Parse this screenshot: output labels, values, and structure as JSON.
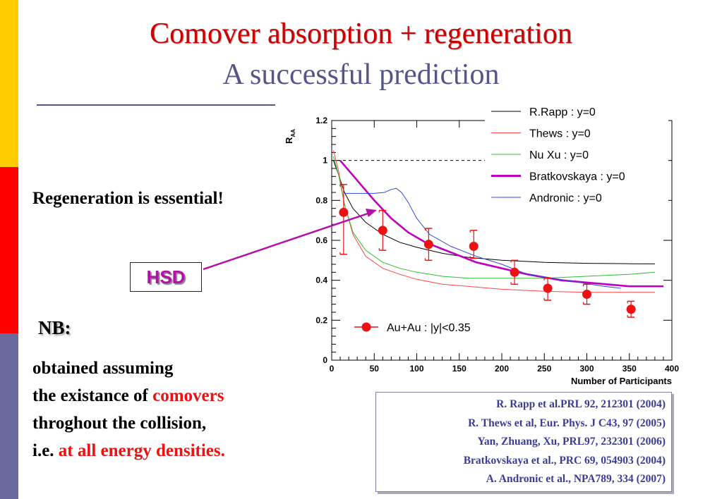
{
  "slide": {
    "title": "Comover absorption + regeneration",
    "subtitle": "A successful prediction",
    "regen_note": "Regeneration is essential!",
    "hsd_label": "HSD",
    "nb_label": "NB:",
    "nb_lines": {
      "l1": "obtained assuming",
      "l2a": "the existance of ",
      "l2b": "comovers",
      "l3": "throghout the collision,",
      "l4a": "i.e. ",
      "l4b": "at all energy densities."
    },
    "references": [
      "R. Rapp et al.PRL 92, 212301 (2004)",
      "R. Thews et al, Eur. Phys. J C43, 97 (2005)",
      "Yan, Zhuang, Xu, PRL97, 232301 (2006)",
      "Bratkovskaya et al., PRC 69, 054903 (2004)",
      "A. Andronic et al., NPA789, 334 (2007)"
    ],
    "colors": {
      "title": "#cc0000",
      "subtitle": "#55558a",
      "accent_red": "#ee1111",
      "hsd": "#b40fa8",
      "bar_top": "#ffcc00",
      "bar_mid": "#ff0000",
      "bar_bottom": "#6a6a9e"
    }
  },
  "chart_data": {
    "type": "line",
    "xlabel": "Number of Participants",
    "ylabel": "R",
    "ylabel_sub": "AA",
    "xlim": [
      0,
      400
    ],
    "ylim": [
      0,
      1.2
    ],
    "xticks": [
      "0",
      "50",
      "100",
      "150",
      "200",
      "250",
      "300",
      "350",
      "400"
    ],
    "yticks": [
      "0",
      "0.2",
      "0.4",
      "0.6",
      "0.8",
      "1",
      "1.2"
    ],
    "reference_line": 1.0,
    "series": [
      {
        "name": "R.Rapp : y=0",
        "color": "#000000",
        "x": [
          2,
          8,
          15,
          25,
          40,
          60,
          80,
          100,
          130,
          160,
          200,
          250,
          300,
          350,
          380
        ],
        "y": [
          1.0,
          0.93,
          0.84,
          0.76,
          0.69,
          0.63,
          0.59,
          0.565,
          0.535,
          0.515,
          0.5,
          0.49,
          0.485,
          0.483,
          0.482
        ]
      },
      {
        "name": "Thews : y=0",
        "color": "#ff4444",
        "x": [
          2,
          8,
          15,
          25,
          40,
          60,
          80,
          100,
          130,
          160,
          200,
          250,
          300,
          350,
          380
        ],
        "y": [
          1.05,
          0.95,
          0.78,
          0.63,
          0.52,
          0.46,
          0.43,
          0.405,
          0.38,
          0.37,
          0.355,
          0.345,
          0.34,
          0.34,
          0.34
        ]
      },
      {
        "name": "Nu Xu : y=0",
        "color": "#33bb33",
        "x": [
          2,
          8,
          15,
          25,
          40,
          60,
          80,
          100,
          130,
          160,
          200,
          250,
          300,
          350,
          380
        ],
        "y": [
          1.02,
          0.93,
          0.78,
          0.64,
          0.55,
          0.49,
          0.46,
          0.44,
          0.42,
          0.41,
          0.41,
          0.41,
          0.42,
          0.43,
          0.44
        ]
      },
      {
        "name": "Bratkovskaya : y=0",
        "color": "#c000c0",
        "x": [
          10,
          30,
          50,
          70,
          90,
          110,
          140,
          170,
          200,
          230,
          270,
          310,
          350,
          390
        ],
        "y": [
          1.0,
          0.9,
          0.8,
          0.71,
          0.64,
          0.59,
          0.54,
          0.49,
          0.46,
          0.43,
          0.4,
          0.385,
          0.37,
          0.37
        ]
      },
      {
        "name": "Andronic : y=0",
        "color": "#3344dd",
        "x": [
          15,
          30,
          50,
          62,
          70,
          76,
          82,
          90,
          100,
          115,
          140,
          170,
          200,
          230,
          260,
          290,
          320,
          340
        ],
        "y": [
          0.835,
          0.835,
          0.835,
          0.84,
          0.855,
          0.86,
          0.84,
          0.79,
          0.71,
          0.63,
          0.57,
          0.52,
          0.48,
          0.43,
          0.41,
          0.39,
          0.37,
          0.36
        ]
      }
    ],
    "data_series": {
      "name": "Au+Au : |y|<0.35",
      "color": "#ee1111",
      "x": [
        14,
        60,
        114,
        167,
        215,
        254,
        300,
        352
      ],
      "y": [
        0.74,
        0.65,
        0.58,
        0.57,
        0.44,
        0.36,
        0.33,
        0.255
      ],
      "yerr_low": [
        0.21,
        0.1,
        0.08,
        0.06,
        0.06,
        0.06,
        0.05,
        0.04
      ],
      "yerr_high": [
        0.14,
        0.1,
        0.08,
        0.08,
        0.06,
        0.05,
        0.05,
        0.04
      ]
    }
  }
}
